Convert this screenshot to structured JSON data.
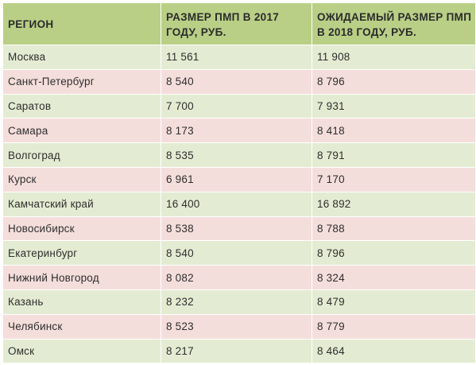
{
  "table": {
    "headers": {
      "region": "РЕГИОН",
      "pmp_2017": "РАЗМЕР ПМП В 2017 ГОДУ, РУБ.",
      "pmp_2018": "ОЖИДАЕМЫЙ РАЗМЕР ПМП В 2018 ГОДУ, РУБ."
    },
    "rows": [
      {
        "region": "Москва",
        "pmp_2017": "11 561",
        "pmp_2018": "11 908"
      },
      {
        "region": "Санкт-Петербург",
        "pmp_2017": "8 540",
        "pmp_2018": "8 796"
      },
      {
        "region": "Саратов",
        "pmp_2017": "7 700",
        "pmp_2018": "7 931"
      },
      {
        "region": "Самара",
        "pmp_2017": "8 173",
        "pmp_2018": "8 418"
      },
      {
        "region": "Волгоград",
        "pmp_2017": "8 535",
        "pmp_2018": "8 791"
      },
      {
        "region": "Курск",
        "pmp_2017": "6 961",
        "pmp_2018": "7 170"
      },
      {
        "region": "Камчатский край",
        "pmp_2017": "16 400",
        "pmp_2018": "16 892"
      },
      {
        "region": "Новосибирск",
        "pmp_2017": "8 538",
        "pmp_2018": "8 788"
      },
      {
        "region": "Екатеринбург",
        "pmp_2017": "8 540",
        "pmp_2018": "8 796"
      },
      {
        "region": "Нижний Новгород",
        "pmp_2017": "8 082",
        "pmp_2018": "8 324"
      },
      {
        "region": "Казань",
        "pmp_2017": "8 232",
        "pmp_2018": "8 479"
      },
      {
        "region": "Челябинск",
        "pmp_2017": "8 523",
        "pmp_2018": "8 779"
      },
      {
        "region": "Омск",
        "pmp_2017": "8 217",
        "pmp_2018": "8 464"
      }
    ],
    "colors": {
      "header_bg": "#b9cf86",
      "row_odd_bg": "#e3ecd2",
      "row_even_bg": "#f4dedb"
    }
  }
}
